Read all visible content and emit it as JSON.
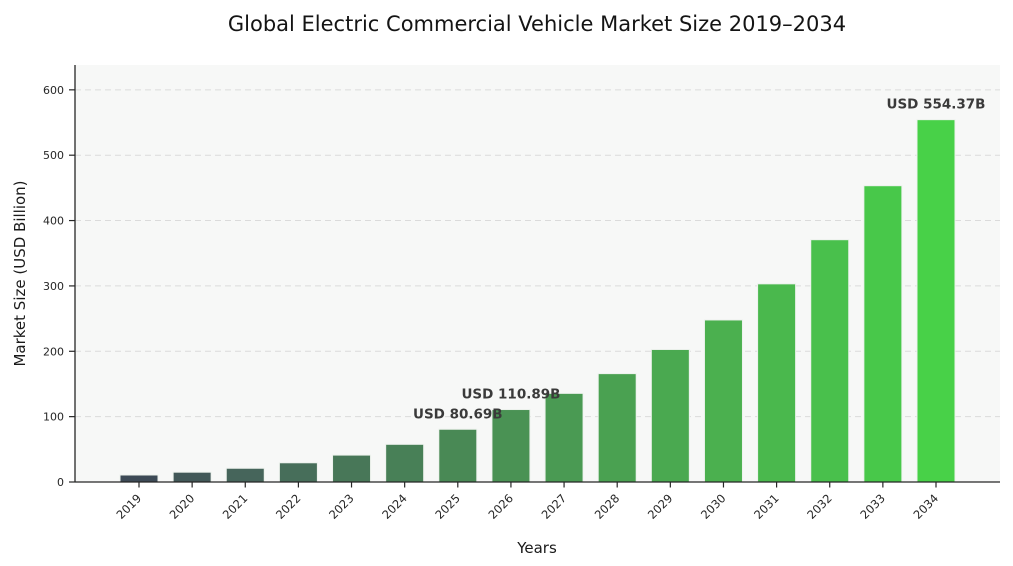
{
  "chart_data": {
    "type": "bar",
    "title": "Global Electric Commercial Vehicle Market Size 2019–2034",
    "xlabel": "Years",
    "ylabel": "Market Size (USD Billion)",
    "categories": [
      "2019",
      "2020",
      "2021",
      "2022",
      "2023",
      "2024",
      "2025",
      "2026",
      "2027",
      "2028",
      "2029",
      "2030",
      "2031",
      "2032",
      "2033",
      "2034"
    ],
    "values": [
      10.72,
      15.01,
      21.01,
      29.41,
      41.17,
      57.64,
      80.69,
      110.89,
      135.6,
      165.81,
      202.75,
      247.93,
      303.17,
      370.72,
      453.32,
      554.37
    ],
    "bar_colors": [
      "#3d4a56",
      "#425858",
      "#46655b",
      "#476e5a",
      "#487758",
      "#488057",
      "#498955",
      "#4a9254",
      "#4a9a53",
      "#4aa151",
      "#4aa950",
      "#4bb04f",
      "#4ab84d",
      "#49c04c",
      "#48c84a",
      "#48d148"
    ],
    "annotations": [
      {
        "year": "2025",
        "label": "USD 80.69B"
      },
      {
        "year": "2026",
        "label": "USD 110.89B"
      },
      {
        "year": "2034",
        "label": "USD 554.37B"
      }
    ],
    "yticks": [
      0,
      100,
      200,
      300,
      400,
      500,
      600
    ],
    "ylim": [
      0,
      638
    ],
    "grid": "horizontal-dashed",
    "legend": "none",
    "colors": {
      "figure_background": "#ffffff",
      "plot_background": "#f7f8f7",
      "gridline": "#dbdbdb",
      "spine": "#262626",
      "tick": "#262626",
      "annotation_text": "#3a3a3a",
      "bar_edge": "#edf2ed",
      "title_text": "#141414"
    }
  }
}
